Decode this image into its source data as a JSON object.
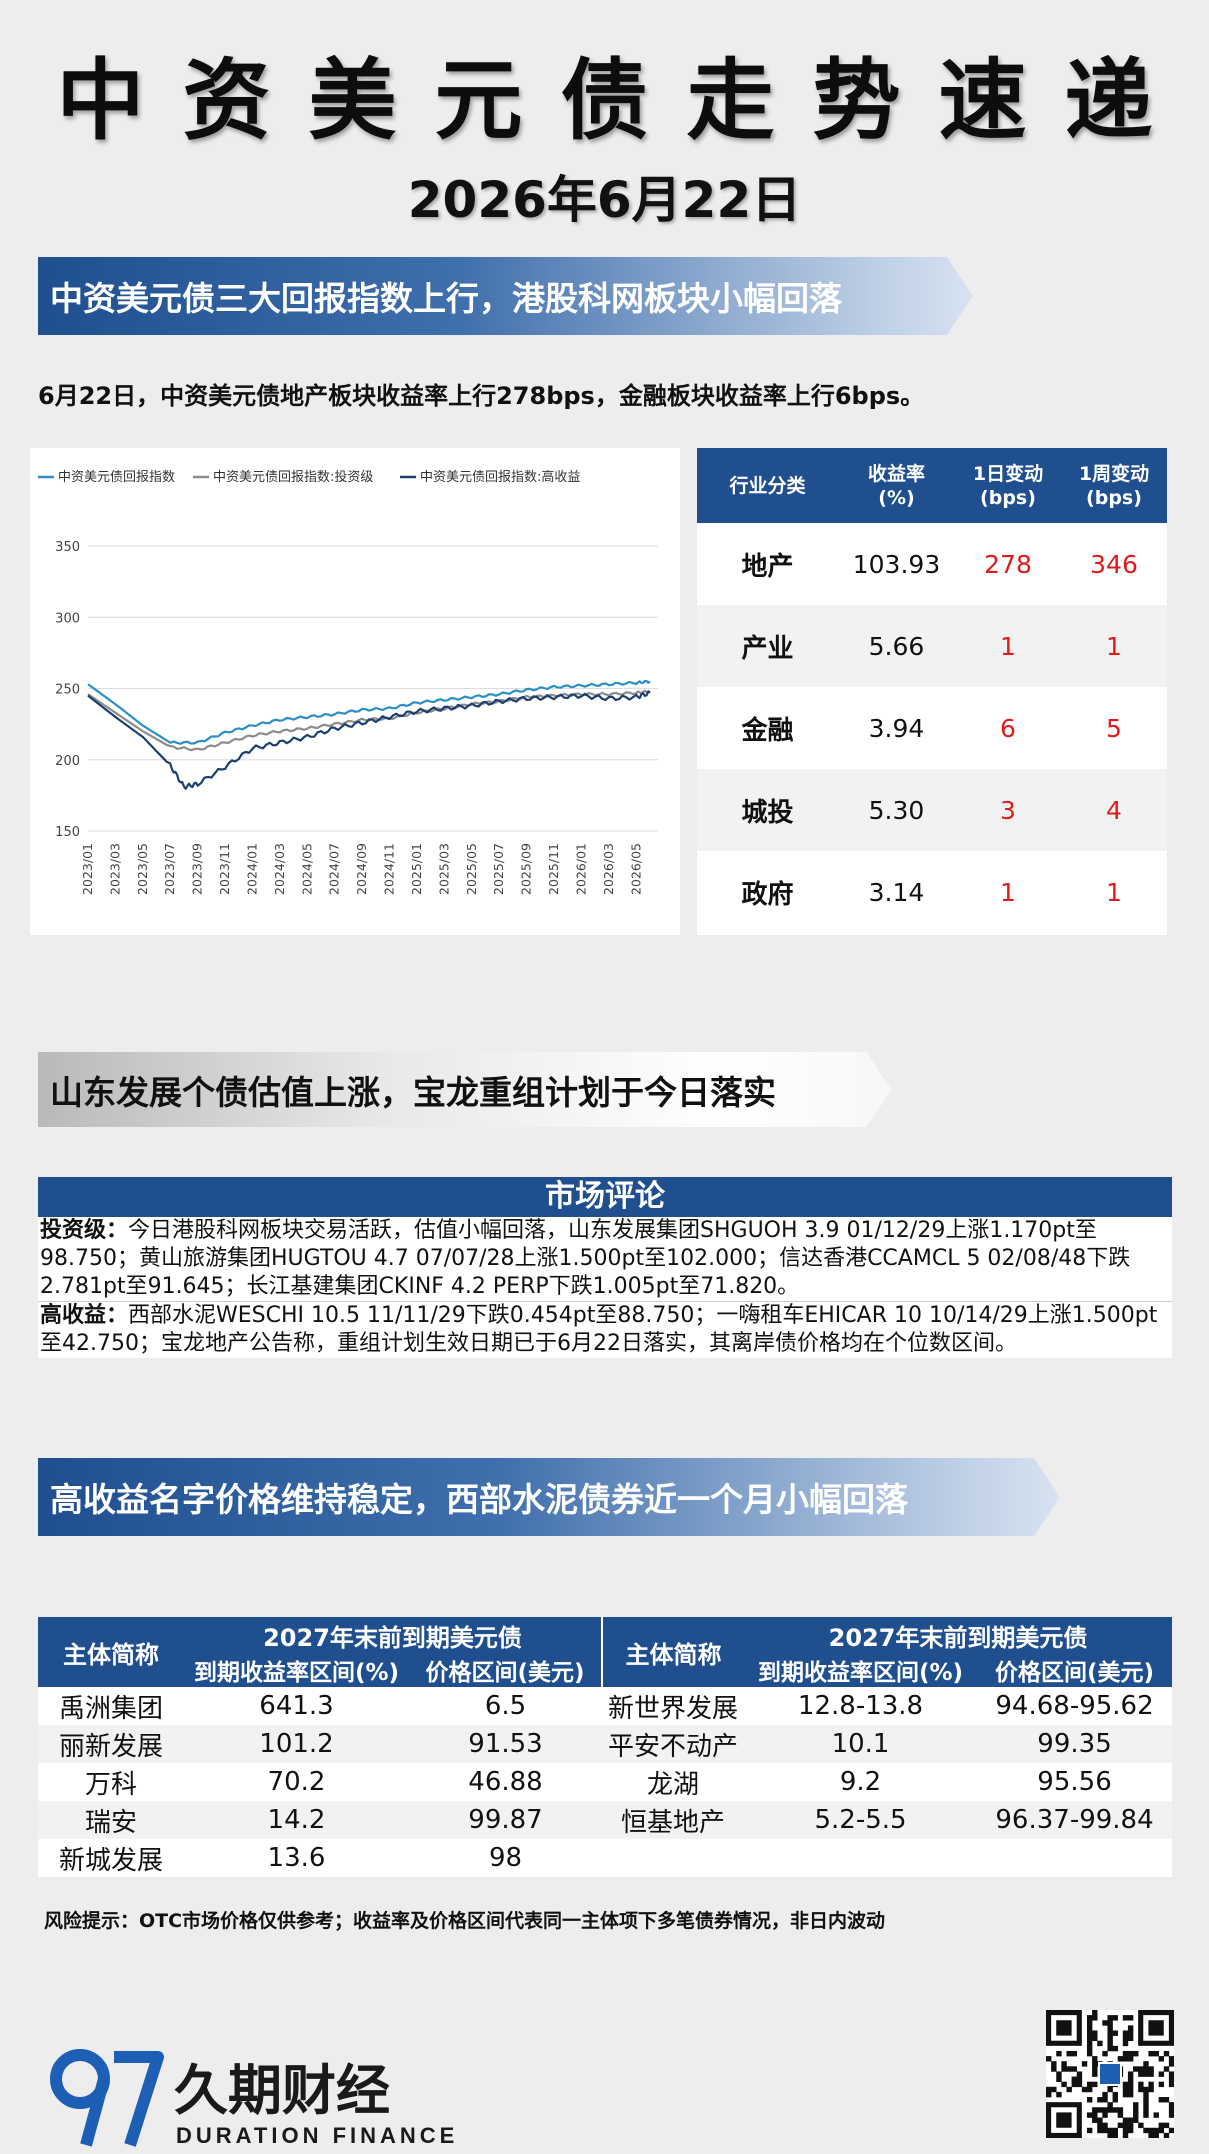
{
  "header": {
    "title": "中资美元债走势速递",
    "date": "2026年6月22日"
  },
  "section1": {
    "banner": "中资美元债三大回报指数上行，港股科网板块小幅回落",
    "summary": "6月22日，中资美元债地产板块收益率上行278bps，金融板块收益率上行6bps。"
  },
  "chart_data": {
    "type": "line",
    "legend": [
      "中资美元债回报指数",
      "中资美元债回报指数:投资级",
      "中资美元债回报指数:高收益"
    ],
    "legend_position": "top",
    "grid": true,
    "yticks": [
      "350",
      "300",
      "250",
      "200",
      "150"
    ],
    "ylim": [
      150,
      350
    ],
    "xticks": [
      "2023/01",
      "2023/03",
      "2023/05",
      "2023/07",
      "2023/09",
      "2023/11",
      "2024/01",
      "2024/03",
      "2024/05",
      "2024/07",
      "2024/09",
      "2024/11",
      "2025/01",
      "2025/03",
      "2025/05",
      "2025/07",
      "2025/09",
      "2025/11",
      "2026/01",
      "2026/03",
      "2026/05"
    ],
    "series": [
      {
        "name": "中资美元债回报指数",
        "color": "#2a8fc7",
        "x": [
          "2023/01",
          "2023/03",
          "2023/05",
          "2023/07",
          "2023/09",
          "2023/11",
          "2024/01",
          "2024/03",
          "2024/05",
          "2024/07",
          "2024/09",
          "2024/11",
          "2025/01",
          "2025/03",
          "2025/05",
          "2025/07",
          "2025/09",
          "2025/11",
          "2026/01",
          "2026/03",
          "2026/05",
          "2026/06"
        ],
        "values": [
          253,
          239,
          224,
          212,
          212,
          219,
          224,
          228,
          230,
          232,
          235,
          236,
          240,
          242,
          244,
          246,
          249,
          251,
          252,
          253,
          254,
          255
        ]
      },
      {
        "name": "中资美元债回报指数:投资级",
        "color": "#8c8c8c",
        "x": [
          "2023/01",
          "2023/03",
          "2023/05",
          "2023/07",
          "2023/09",
          "2023/11",
          "2024/01",
          "2024/03",
          "2024/05",
          "2024/07",
          "2024/09",
          "2024/11",
          "2025/01",
          "2025/03",
          "2025/05",
          "2025/07",
          "2025/09",
          "2025/11",
          "2026/01",
          "2026/03",
          "2026/05",
          "2026/06"
        ],
        "values": [
          246,
          233,
          220,
          209,
          207,
          212,
          217,
          220,
          222,
          225,
          228,
          229,
          233,
          236,
          239,
          241,
          244,
          245,
          246,
          246,
          247,
          248
        ]
      },
      {
        "name": "中资美元债回报指数:高收益",
        "color": "#1b3f6e",
        "x": [
          "2023/01",
          "2023/03",
          "2023/05",
          "2023/07",
          "2023/08",
          "2023/09",
          "2023/11",
          "2024/01",
          "2024/03",
          "2024/05",
          "2024/07",
          "2024/09",
          "2024/11",
          "2025/01",
          "2025/03",
          "2025/05",
          "2025/07",
          "2025/09",
          "2025/11",
          "2026/01",
          "2026/03",
          "2026/05",
          "2026/06"
        ],
        "values": [
          245,
          230,
          216,
          196,
          181,
          183,
          195,
          208,
          212,
          216,
          222,
          226,
          230,
          234,
          236,
          238,
          241,
          243,
          244,
          245,
          243,
          244,
          247
        ]
      }
    ]
  },
  "industry_table": {
    "headers": [
      "行业分类",
      "收益率(%)",
      "1日变动(bps)",
      "1周变动(bps)"
    ],
    "rows": [
      {
        "cat": "地产",
        "yield": "103.93",
        "d1": "278",
        "w1": "346"
      },
      {
        "cat": "产业",
        "yield": "5.66",
        "d1": "1",
        "w1": "1"
      },
      {
        "cat": "金融",
        "yield": "3.94",
        "d1": "6",
        "w1": "5"
      },
      {
        "cat": "城投",
        "yield": "5.30",
        "d1": "3",
        "w1": "4"
      },
      {
        "cat": "政府",
        "yield": "3.14",
        "d1": "1",
        "w1": "1"
      }
    ],
    "colors": {
      "header": "#1f4f8f",
      "change": "#e01b1b"
    }
  },
  "section2": {
    "banner": "山东发展个债估值上涨，宝龙重组计划于今日落实"
  },
  "commentary": {
    "title": "市场评论",
    "ig_label": "投资级：",
    "ig_text": "今日港股科网板块交易活跃，估值小幅回落，山东发展集团SHGUOH 3.9 01/12/29上涨1.170pt至98.750；黄山旅游集团HUGTOU 4.7 07/07/28上涨1.500pt至102.000；信达香港CCAMCL 5 02/08/48下跌2.781pt至91.645；长江基建集团CKINF 4.2 PERP下跌1.005pt至71.820。",
    "hy_label": "高收益：",
    "hy_text": "西部水泥WESCHI 10.5 11/11/29下跌0.454pt至88.750；一嗨租车EHICAR 10 10/14/29上涨1.500pt至42.750；宝龙地产公告称，重组计划生效日期已于6月22日落实，其离岸债价格均在个位数区间。"
  },
  "section3": {
    "banner": "高收益名字价格维持稳定，西部水泥债券近一个月小幅回落"
  },
  "bond_table": {
    "entity_header": "主体简称",
    "group_header": "2027年末前到期美元债",
    "yield_header": "到期收益率区间(%)",
    "price_header": "价格区间(美元)",
    "left_rows": [
      {
        "name": "禹洲集团",
        "yield": "641.3",
        "price": "6.5"
      },
      {
        "name": "丽新发展",
        "yield": "101.2",
        "price": "91.53"
      },
      {
        "name": "万科",
        "yield": "70.2",
        "price": "46.88"
      },
      {
        "name": "瑞安",
        "yield": "14.2",
        "price": "99.87"
      },
      {
        "name": "新城发展",
        "yield": "13.6",
        "price": "98"
      }
    ],
    "right_rows": [
      {
        "name": "新世界发展",
        "yield": "12.8-13.8",
        "price": "94.68-95.62"
      },
      {
        "name": "平安不动产",
        "yield": "10.1",
        "price": "99.35"
      },
      {
        "name": "龙湖",
        "yield": "9.2",
        "price": "95.56"
      },
      {
        "name": "恒基地产",
        "yield": "5.2-5.5",
        "price": "96.37-99.84"
      },
      {
        "name": "",
        "yield": "",
        "price": ""
      }
    ]
  },
  "risk_note": "风险提示：OTC市场价格仅供参考；收益率及价格区间代表同一主体项下多笔债券情况，非日内波动",
  "brand": {
    "logo_mark": "97",
    "name_cn": "久期财经",
    "name_en": "DURATION FINANCE",
    "qr_icon": "qr-code-icon",
    "color": "#1d5fb4"
  }
}
